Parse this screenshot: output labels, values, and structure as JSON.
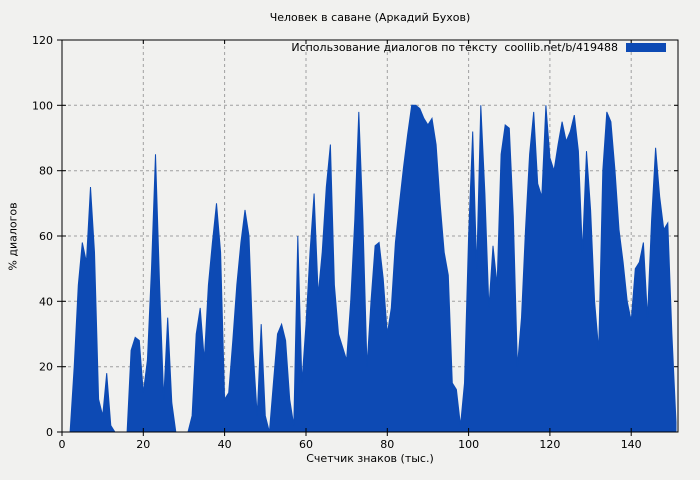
{
  "chart_data": {
    "type": "area",
    "title": "Человек в саване (Аркадий Бухов)",
    "xlabel": "Счетчик знаков (тыс.)",
    "ylabel": "% диалогов",
    "legend": [
      {
        "name": "Использование диалогов по тексту  coollib.net/b/419488",
        "color": "#0d4ab4"
      }
    ],
    "legend_position": "top-right-inside",
    "grid": true,
    "xlim": [
      0,
      151.5
    ],
    "ylim": [
      0,
      120
    ],
    "xticks": [
      0,
      20,
      40,
      60,
      80,
      100,
      120,
      140
    ],
    "yticks": [
      0,
      20,
      40,
      60,
      80,
      100,
      120
    ],
    "x_start": 0,
    "x_step": 1,
    "series": [
      {
        "name": "Использование диалогов по тексту  coollib.net/b/419488",
        "color": "#0d4ab4",
        "values": [
          0,
          0,
          0,
          20,
          45,
          58,
          52,
          75,
          55,
          10,
          5,
          18,
          2,
          0,
          0,
          0,
          0,
          25,
          29,
          28,
          12,
          22,
          50,
          85,
          45,
          10,
          35,
          9,
          0,
          0,
          0,
          0,
          5,
          30,
          38,
          22,
          45,
          58,
          70,
          55,
          10,
          12,
          28,
          45,
          58,
          68,
          60,
          25,
          5,
          33,
          5,
          0,
          15,
          30,
          33,
          28,
          10,
          2,
          60,
          15,
          33,
          55,
          73,
          42,
          55,
          75,
          88,
          45,
          30,
          26,
          22,
          40,
          65,
          98,
          65,
          20,
          40,
          57,
          58,
          47,
          30,
          38,
          58,
          70,
          81,
          91,
          100,
          100,
          99,
          96,
          94,
          96,
          88,
          70,
          55,
          48,
          15,
          13,
          2,
          15,
          60,
          92,
          50,
          100,
          73,
          38,
          57,
          45,
          85,
          94,
          93,
          66,
          20,
          35,
          62,
          85,
          98,
          76,
          72,
          100,
          84,
          80,
          88,
          95,
          89,
          92,
          97,
          86,
          55,
          86,
          68,
          40,
          25,
          80,
          98,
          95,
          80,
          62,
          52,
          40,
          34,
          50,
          52,
          58,
          35,
          65,
          87,
          72,
          62,
          64,
          30,
          3
        ]
      }
    ],
    "colors": {
      "background": "#f1f1ef",
      "fill": "#0d4ab4",
      "grid": "#a0a0a0",
      "frame": "#000000",
      "text": "#000000"
    }
  }
}
